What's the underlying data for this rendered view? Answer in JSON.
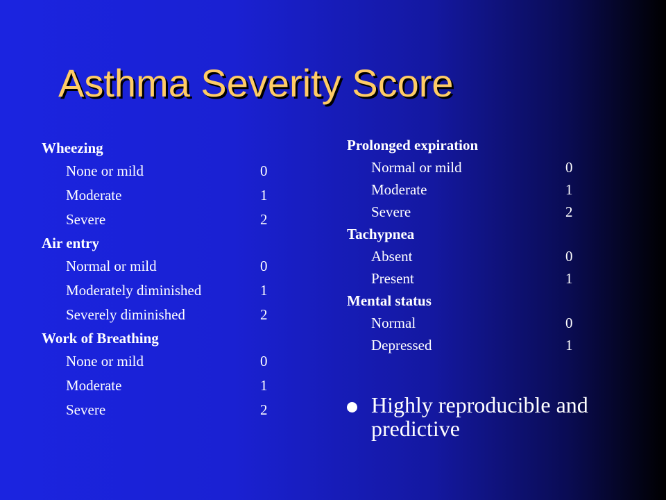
{
  "slide": {
    "title": "Asthma Severity Score",
    "left_column": {
      "sections": [
        {
          "heading": "Wheezing",
          "items": [
            {
              "label": "None or mild",
              "score": "0"
            },
            {
              "label": "Moderate",
              "score": "1"
            },
            {
              "label": "Severe",
              "score": "2"
            }
          ]
        },
        {
          "heading": "Air entry",
          "items": [
            {
              "label": "Normal or mild",
              "score": "0"
            },
            {
              "label": "Moderately diminished",
              "score": "1"
            },
            {
              "label": "Severely diminished",
              "score": "2"
            }
          ]
        },
        {
          "heading": "Work of Breathing",
          "items": [
            {
              "label": "None or mild",
              "score": "0"
            },
            {
              "label": "Moderate",
              "score": "1"
            },
            {
              "label": "Severe",
              "score": "2"
            }
          ]
        }
      ]
    },
    "right_column": {
      "sections": [
        {
          "heading": "Prolonged expiration",
          "items": [
            {
              "label": "Normal or mild",
              "score": "0"
            },
            {
              "label": "Moderate",
              "score": "1"
            },
            {
              "label": "Severe",
              "score": "2"
            }
          ]
        },
        {
          "heading": "Tachypnea",
          "items": [
            {
              "label": "Absent",
              "score": "0"
            },
            {
              "label": "Present",
              "score": "1"
            }
          ]
        },
        {
          "heading": "Mental status",
          "items": [
            {
              "label": "Normal",
              "score": "0"
            },
            {
              "label": "Depressed",
              "score": "1"
            }
          ]
        }
      ]
    },
    "bullet": "Highly reproducible and predictive"
  }
}
